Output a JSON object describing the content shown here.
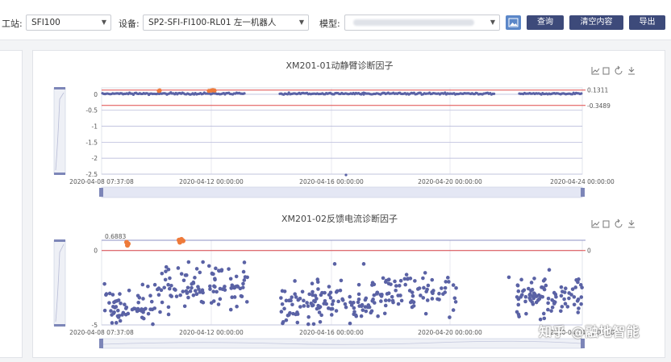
{
  "filters": {
    "station_label": "工站:",
    "station_value": "SFI100",
    "device_label": "设备:",
    "device_value": "SP2-SFI-FI100-RL01 左一机器人",
    "model_label": "模型:",
    "model_value": ""
  },
  "buttons": {
    "query": "查询",
    "clear": "清空内容",
    "export": "导出"
  },
  "watermark": "知乎 @融地智能",
  "chart_data": [
    {
      "type": "scatter",
      "title": "XM201-01动静臂诊断因子",
      "x_ticks": [
        "2020-04-08 07:37:08",
        "2020-04-12 00:00:00",
        "2020-04-16 00:00:00",
        "2020-04-20 00:00:00",
        "2020-04-24 00:00:00"
      ],
      "y_ticks": [
        0,
        -0.5,
        -1,
        -1.5,
        -2,
        -2.5
      ],
      "ylim": [
        -2.5,
        0.2
      ],
      "thresholds": [
        {
          "value": 0.1311,
          "label": "0.1311",
          "color": "#e04a4a"
        },
        {
          "value": -0.3489,
          "label": "-0.3489",
          "color": "#e04a4a"
        }
      ],
      "point_color": "#5a62a5",
      "alarm_color": "#ee7a3a",
      "toolbox_icons": [
        "line-chart-icon",
        "restore-icon",
        "refresh-icon",
        "download-icon"
      ]
    },
    {
      "type": "scatter",
      "title": "XM201-02反馈电流诊断因子",
      "x_ticks": [
        "2020-04-08 07:37:08",
        "2020-04-12 00:00:00",
        "2020-04-16 00:00:00",
        "2020-04-20 00:00:00",
        "2020-04-24 00:00:00"
      ],
      "y_ticks": [
        0,
        -5
      ],
      "ylim": [
        -5,
        0.6883
      ],
      "thresholds": [
        {
          "value": 0.6883,
          "label": "0.6883",
          "color": "#8c90c4"
        },
        {
          "value": 0,
          "label": "0",
          "color": "#e04a4a"
        }
      ],
      "point_color": "#5a62a5",
      "alarm_color": "#ee7a3a",
      "toolbox_icons": [
        "line-chart-icon",
        "restore-icon",
        "refresh-icon",
        "download-icon"
      ]
    }
  ]
}
